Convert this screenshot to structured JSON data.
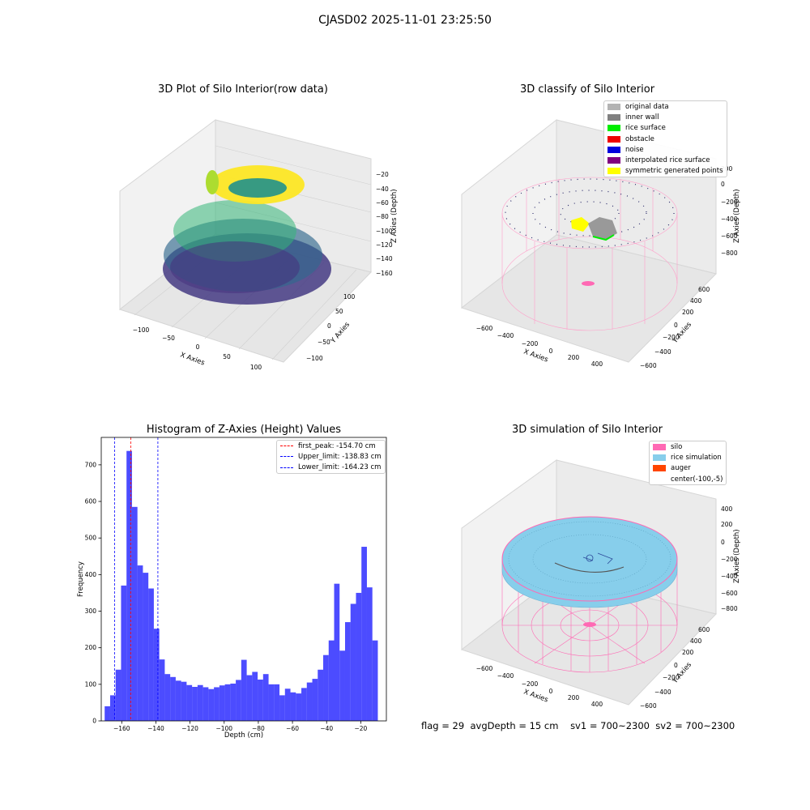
{
  "figure": {
    "suptitle": "CJASD02 2025-11-01 23:25:50"
  },
  "panels": {
    "raw": {
      "title": "3D Plot of Silo Interior(row data)",
      "xlabel": "X Axies",
      "ylabel": "Y Axies",
      "zlabel": "Z Axies (Depth)",
      "xticks": [
        "−100",
        "−50",
        "0",
        "50",
        "100"
      ],
      "yticks": [
        "−100",
        "−50",
        "0",
        "50",
        "100"
      ],
      "zticks": [
        "−20",
        "−40",
        "−60",
        "−80",
        "−100",
        "−120",
        "−140",
        "−160"
      ],
      "colormap": "viridis"
    },
    "classify": {
      "title": "3D classify of Silo Interior",
      "xlabel": "X Axies",
      "ylabel": "Y Axies",
      "zlabel": "Z Axies (Depth)",
      "xticks": [
        "−600",
        "−400",
        "−200",
        "0",
        "200",
        "400"
      ],
      "yticks": [
        "−600",
        "−400",
        "−200",
        "0",
        "200",
        "400",
        "600"
      ],
      "zticks": [
        "200",
        "0",
        "−200",
        "−400",
        "−600",
        "−800"
      ],
      "legend": [
        {
          "label": "original data",
          "color": "#b3b3b3"
        },
        {
          "label": "inner wall",
          "color": "#808080"
        },
        {
          "label": "rice surface",
          "color": "#00ee00"
        },
        {
          "label": "obstacle",
          "color": "#ee0000"
        },
        {
          "label": "noise",
          "color": "#0000dd"
        },
        {
          "label": "interpolated rice surface",
          "color": "#800080"
        },
        {
          "label": "symmetric generated points",
          "color": "#ffff00"
        }
      ]
    },
    "simulation": {
      "title": "3D simulation of Silo Interior",
      "xlabel": "X Axies",
      "ylabel": "Y Axies",
      "zlabel": "Z Axies (Depth)",
      "xticks": [
        "−600",
        "−400",
        "−200",
        "0",
        "200",
        "400"
      ],
      "yticks": [
        "−600",
        "−400",
        "−200",
        "0",
        "200",
        "400",
        "600"
      ],
      "zticks": [
        "400",
        "200",
        "0",
        "−200",
        "−400",
        "−600",
        "−800"
      ],
      "legend": [
        {
          "label": "silo",
          "color": "#ff69b4"
        },
        {
          "label": "rice simulation",
          "color": "#87ceeb"
        },
        {
          "label": "auger",
          "color": "#ff4500"
        },
        {
          "label": "center(-100,-5)",
          "color": ""
        }
      ]
    }
  },
  "chart_data": [
    {
      "type": "bar",
      "title": "Histogram of Z-Axies (Height) Values",
      "xlabel": "Depth (cm)",
      "ylabel": "Frequency",
      "bin_start": -170,
      "bin_width": 3.2,
      "values": [
        40,
        70,
        140,
        370,
        738,
        585,
        425,
        405,
        362,
        252,
        168,
        128,
        120,
        110,
        107,
        98,
        93,
        98,
        92,
        87,
        92,
        97,
        100,
        102,
        112,
        167,
        125,
        134,
        113,
        128,
        100,
        100,
        70,
        88,
        78,
        75,
        90,
        105,
        115,
        140,
        180,
        220,
        375,
        192,
        270,
        320,
        350,
        476,
        365,
        220
      ],
      "color": "#0000ff",
      "xlim": [
        -172,
        -5
      ],
      "ylim": [
        0,
        775
      ],
      "xticks": [
        "−160",
        "−140",
        "−120",
        "−100",
        "−80",
        "−60",
        "−40",
        "−20"
      ],
      "yticks": [
        "0",
        "100",
        "200",
        "300",
        "400",
        "500",
        "600",
        "700"
      ],
      "vlines": [
        {
          "name": "first_peak: -154.70 cm",
          "x": -154.7,
          "color": "#ff0000"
        },
        {
          "name": "Upper_limit: -138.83 cm",
          "x": -138.83,
          "color": "#0000ff"
        },
        {
          "name": "Lower_limit: -164.23 cm",
          "x": -164.23,
          "color": "#0000ff"
        }
      ],
      "legend_position": "upper right",
      "grid": false
    }
  ],
  "footer": {
    "flag": "flag = 29",
    "avg": "avgDepth = 15 cm",
    "sv1": "sv1 = 700~2300",
    "sv2": "sv2 = 700~2300"
  }
}
